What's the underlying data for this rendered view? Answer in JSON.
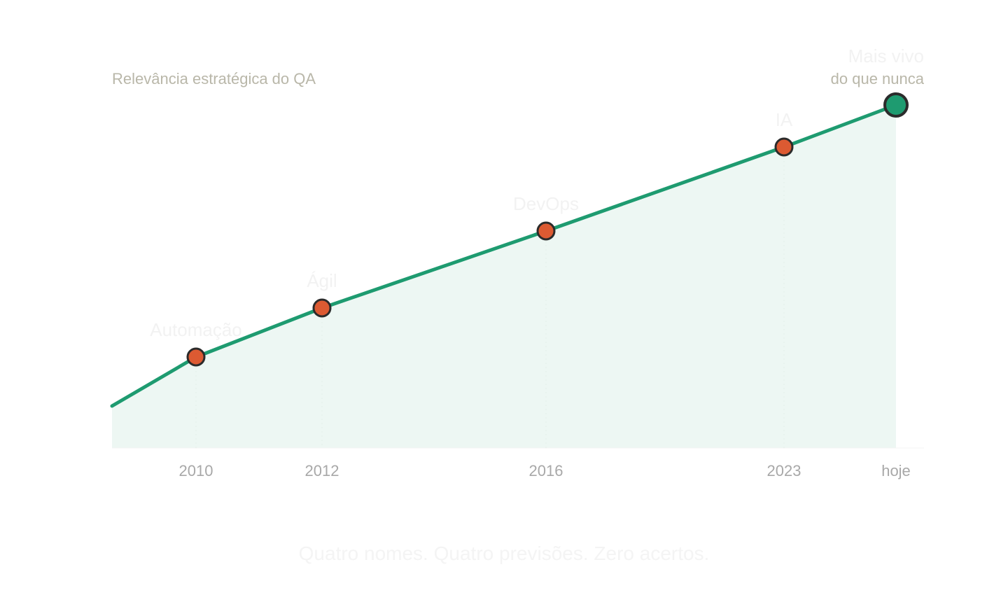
{
  "chart_data": {
    "type": "area",
    "ylabel": "Relevância estratégica do QA",
    "x_labels": [
      "2010",
      "2012",
      "2016",
      "2023",
      "hoje"
    ],
    "points": [
      {
        "x": 2009,
        "y": 12,
        "label": ""
      },
      {
        "x": 2010,
        "y": 26,
        "label": "Automação"
      },
      {
        "x": 2012,
        "y": 40,
        "label": "Ágil"
      },
      {
        "x": 2016,
        "y": 62,
        "label": "DevOps"
      },
      {
        "x": 2023,
        "y": 86,
        "label": "IA"
      },
      {
        "x": 2025,
        "y": 98,
        "label": ""
      }
    ],
    "callout": {
      "line1": "Mais vivo",
      "line2": "do que nunca"
    },
    "footer": "Quatro nomes. Quatro previsões. Zero acertos.",
    "ylim": [
      0,
      100
    ],
    "grid": false,
    "colors": {
      "line": "#1e9b70",
      "area_fill": "#edf7f3",
      "event_marker": "#dc5a32",
      "final_marker": "#1e9b70",
      "marker_stroke": "#2b2b2b"
    }
  }
}
